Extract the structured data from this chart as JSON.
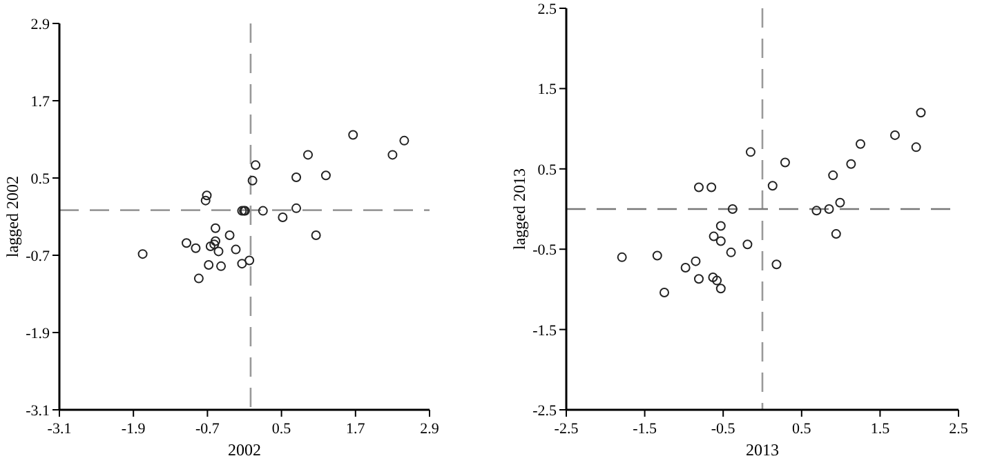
{
  "chart_data": [
    {
      "type": "scatter",
      "xlabel": "2002",
      "ylabel": "lagged 2002",
      "xlim": [
        -3.1,
        2.9
      ],
      "ylim": [
        -3.1,
        2.9
      ],
      "xticks": [
        -3.1,
        -1.9,
        -0.7,
        0.5,
        1.7,
        2.9
      ],
      "yticks": [
        -3.1,
        -1.9,
        -0.7,
        0.5,
        1.7,
        2.9
      ],
      "marker": "circle",
      "grid": false,
      "ref_lines": [
        {
          "axis": "x",
          "value": 0,
          "color": "#999999",
          "line_style": "dashed"
        },
        {
          "axis": "y",
          "value": 0,
          "color": "#999999",
          "line_style": "dashed"
        }
      ],
      "series": [
        {
          "color": "#222222",
          "x": [
            -1.75,
            -1.04,
            -0.89,
            -0.84,
            -0.68,
            -0.73,
            -0.71,
            -0.57,
            -0.57,
            -0.65,
            -0.59,
            -0.52,
            -0.48,
            -0.34,
            -0.24,
            -0.14,
            -0.02,
            -0.14,
            -0.11,
            -0.09,
            0.03,
            0.08,
            0.2,
            0.52,
            0.74,
            0.74,
            0.93,
            1.06,
            1.22,
            1.66,
            2.3,
            2.49
          ],
          "values": [
            -0.68,
            -0.51,
            -0.59,
            -1.06,
            -0.85,
            0.15,
            0.23,
            -0.28,
            -0.48,
            -0.56,
            -0.53,
            -0.64,
            -0.87,
            -0.39,
            -0.61,
            -0.83,
            -0.78,
            -0.01,
            -0.01,
            -0.01,
            0.46,
            0.7,
            -0.01,
            -0.11,
            0.03,
            0.51,
            0.86,
            -0.39,
            0.54,
            1.17,
            0.86,
            1.08
          ]
        }
      ]
    },
    {
      "type": "scatter",
      "xlabel": "2013",
      "ylabel": "lagged 2013",
      "xlim": [
        -2.5,
        2.5
      ],
      "ylim": [
        -2.5,
        2.5
      ],
      "xticks": [
        -2.5,
        -1.5,
        -0.5,
        0.5,
        1.5,
        2.5
      ],
      "yticks": [
        -2.5,
        -1.5,
        -0.5,
        0.5,
        1.5,
        2.5
      ],
      "marker": "circle",
      "grid": false,
      "ref_lines": [
        {
          "axis": "x",
          "value": 0,
          "color": "#999999",
          "line_style": "dashed"
        },
        {
          "axis": "y",
          "value": 0,
          "color": "#777777",
          "line_style": "dashed"
        }
      ],
      "series": [
        {
          "color": "#222222",
          "x": [
            -1.79,
            -1.34,
            -1.25,
            -0.98,
            -0.85,
            -0.81,
            -0.81,
            -0.65,
            -0.63,
            -0.62,
            -0.58,
            -0.53,
            -0.53,
            -0.53,
            -0.4,
            -0.38,
            -0.19,
            -0.15,
            0.13,
            0.18,
            0.29,
            0.69,
            0.85,
            0.9,
            0.94,
            0.99,
            1.13,
            1.25,
            1.69,
            1.96,
            2.02
          ],
          "values": [
            -0.6,
            -0.58,
            -1.04,
            -0.73,
            -0.65,
            0.27,
            -0.87,
            0.27,
            -0.85,
            -0.34,
            -0.89,
            -0.21,
            -0.4,
            -0.99,
            -0.54,
            0.0,
            -0.44,
            0.71,
            0.29,
            -0.69,
            0.58,
            -0.02,
            0.0,
            0.42,
            -0.31,
            0.08,
            0.56,
            0.81,
            0.92,
            0.77,
            1.2
          ]
        }
      ]
    }
  ]
}
